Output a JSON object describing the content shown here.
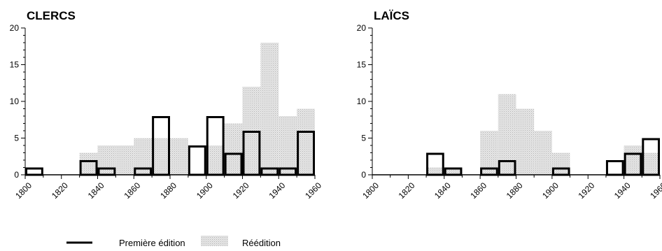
{
  "legend": {
    "first_label": "Première édition",
    "reprint_label": "Réédition",
    "reprint_color": "#d9d9d9",
    "first_color": "#000000"
  },
  "chart_data": [
    {
      "type": "bar",
      "title": "CLERCS",
      "xlabel": "",
      "ylabel": "",
      "ylim": [
        0,
        20
      ],
      "xlim": [
        1800,
        1960
      ],
      "x_ticks": [
        "1800",
        "1820",
        "1840",
        "1860",
        "1880",
        "1900",
        "1920",
        "1940",
        "1960"
      ],
      "y_ticks": [
        "0",
        "5",
        "10",
        "15",
        "20"
      ],
      "bin_width_years": 10,
      "bin_starts": [
        1800,
        1810,
        1820,
        1830,
        1840,
        1850,
        1860,
        1870,
        1880,
        1890,
        1900,
        1910,
        1920,
        1930,
        1940,
        1950
      ],
      "series": [
        {
          "name": "Réédition",
          "values": [
            0,
            0,
            0,
            3,
            4,
            4,
            5,
            5,
            5,
            0,
            4,
            7,
            12,
            18,
            8,
            9
          ]
        },
        {
          "name": "Première édition",
          "values": [
            1,
            0,
            0,
            2,
            1,
            0,
            1,
            8,
            0,
            4,
            8,
            3,
            6,
            1,
            1,
            6
          ]
        }
      ]
    },
    {
      "type": "bar",
      "title": "LAÏCS",
      "xlabel": "",
      "ylabel": "",
      "ylim": [
        0,
        20
      ],
      "xlim": [
        1800,
        1960
      ],
      "x_ticks": [
        "1800",
        "1820",
        "1840",
        "1860",
        "1880",
        "1900",
        "1920",
        "1940",
        "1960"
      ],
      "y_ticks": [
        "0",
        "5",
        "10",
        "15",
        "20"
      ],
      "bin_width_years": 10,
      "bin_starts": [
        1800,
        1810,
        1820,
        1830,
        1840,
        1850,
        1860,
        1870,
        1880,
        1890,
        1900,
        1910,
        1920,
        1930,
        1940,
        1950
      ],
      "series": [
        {
          "name": "Réédition",
          "values": [
            0,
            0,
            0,
            1,
            1,
            0,
            6,
            11,
            9,
            6,
            3,
            0,
            0,
            0,
            4,
            3
          ]
        },
        {
          "name": "Première édition",
          "values": [
            0,
            0,
            0,
            3,
            1,
            0,
            1,
            2,
            0,
            0,
            1,
            0,
            0,
            2,
            3,
            5
          ]
        }
      ]
    }
  ]
}
